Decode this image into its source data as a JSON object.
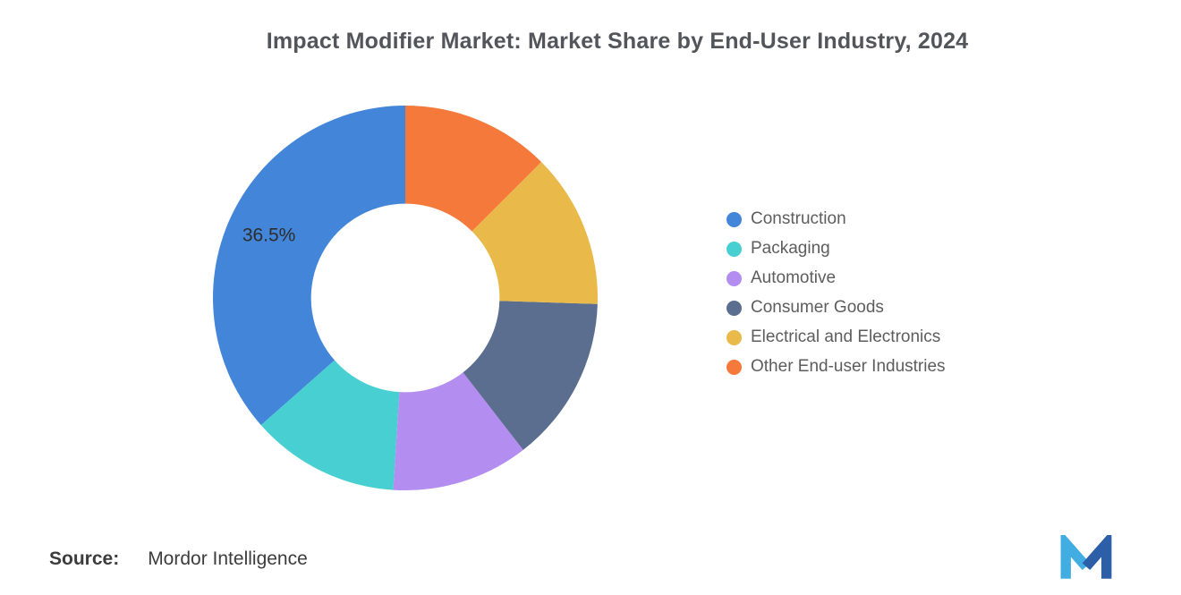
{
  "title": "Impact Modifier Market: Market Share by End-User Industry, 2024",
  "chart_data": {
    "type": "pie",
    "variant": "donut",
    "title": "Impact Modifier Market: Market Share by End-User Industry, 2024",
    "unit": "%",
    "start_angle": "top",
    "direction": "counterclockwise",
    "inner_radius_ratio": 0.49,
    "legend_position": "right",
    "series": [
      {
        "name": "Construction",
        "value": 36.5,
        "color": "#4285D9"
      },
      {
        "name": "Packaging",
        "value": 12.5,
        "color": "#47CFD2"
      },
      {
        "name": "Automotive",
        "value": 11.5,
        "color": "#B38DF0"
      },
      {
        "name": "Consumer Goods",
        "value": 14.0,
        "color": "#5B6E8F"
      },
      {
        "name": "Electrical and Electronics",
        "value": 13.0,
        "color": "#E9B949"
      },
      {
        "name": "Other End-user Industries",
        "value": 12.5,
        "color": "#F4793B"
      }
    ],
    "data_labels": [
      {
        "series": "Construction",
        "text": "36.5%"
      }
    ]
  },
  "source": {
    "label": "Source:",
    "value": "Mordor Intelligence"
  },
  "logo": {
    "name": "Mordor Intelligence logo mark",
    "color_light": "#41ADE2",
    "color_dark": "#2C5FA8"
  }
}
